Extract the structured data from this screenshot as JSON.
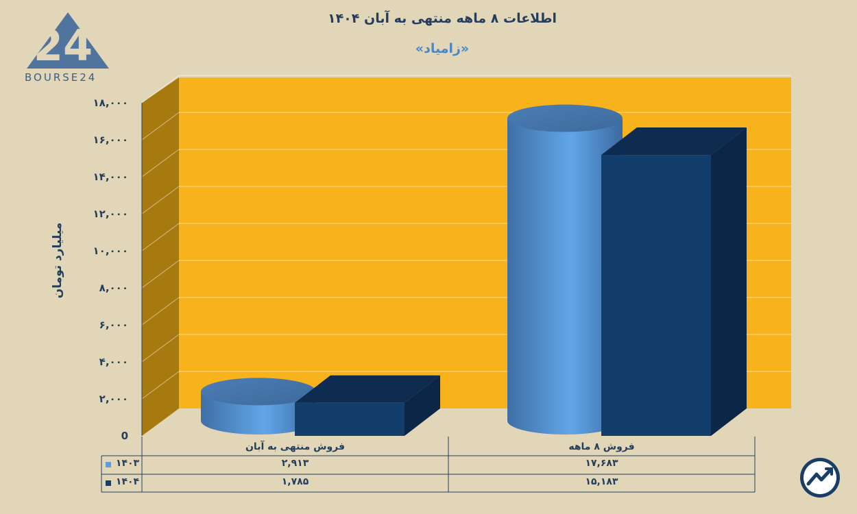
{
  "title": "اطلاعات ۸ ماهه منتهی به آبان ۱۴۰۴",
  "subtitle": "«زامیاد»",
  "logo": {
    "text": "BOURSE24",
    "mark": "24"
  },
  "badge": {
    "icon": "trend-arrow-icon"
  },
  "colors": {
    "background": "#e2d6b8",
    "plot_back": "#f8b21c",
    "plot_left_wall": "#a77a10",
    "series_1403": "#5a9ee0",
    "series_1404": "#133e6b"
  },
  "chart_data": {
    "type": "bar",
    "title": "اطلاعات ۸ ماهه منتهی به آبان ۱۴۰۴",
    "subtitle": "«زامیاد»",
    "ylabel": "میلیارد تومان",
    "xlabel": "",
    "ylim": [
      0,
      18000
    ],
    "yticks": [
      0,
      2000,
      4000,
      6000,
      8000,
      10000,
      12000,
      14000,
      16000,
      18000
    ],
    "ytick_labels": [
      "0",
      "۲,۰۰۰",
      "۴,۰۰۰",
      "۶,۰۰۰",
      "۸,۰۰۰",
      "۱۰,۰۰۰",
      "۱۲,۰۰۰",
      "۱۴,۰۰۰",
      "۱۶,۰۰۰",
      "۱۸,۰۰۰"
    ],
    "categories": [
      "فروش منتهی به  آبان",
      "فروش ۸  ماهه"
    ],
    "series": [
      {
        "name": "۱۴۰۳",
        "values": [
          2913,
          17683
        ],
        "labels": [
          "۲,۹۱۳",
          "۱۷,۶۸۳"
        ],
        "shape": "cylinder"
      },
      {
        "name": "۱۴۰۴",
        "values": [
          1785,
          15183
        ],
        "labels": [
          "۱,۷۸۵",
          "۱۵,۱۸۳"
        ],
        "shape": "box"
      }
    ],
    "grid": true,
    "legend": "data-table"
  }
}
